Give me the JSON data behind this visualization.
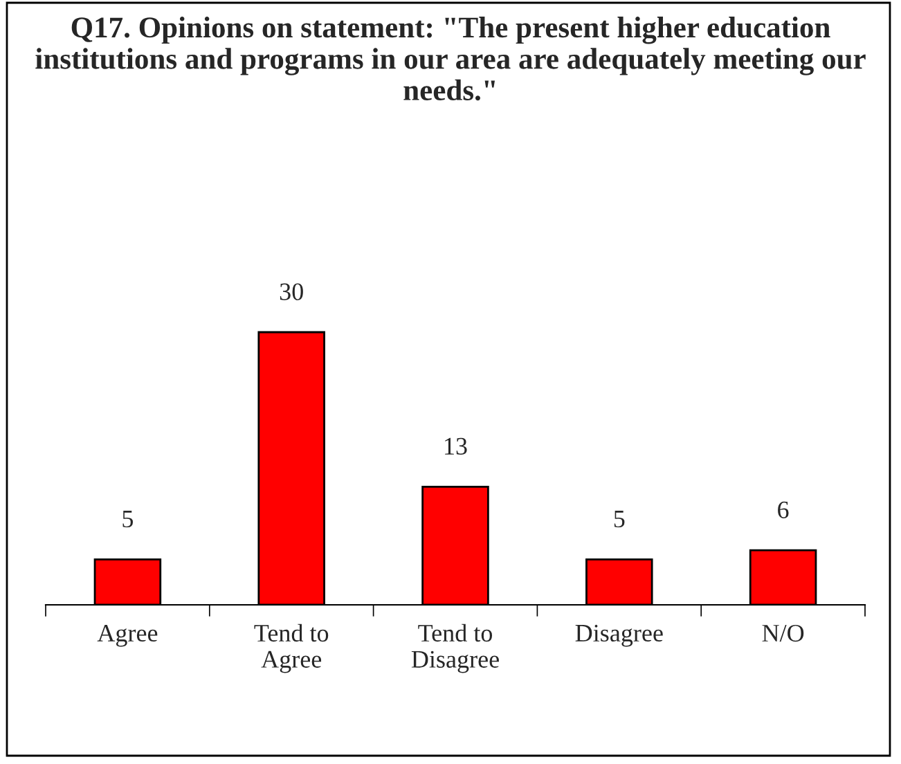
{
  "chart_data": {
    "type": "bar",
    "title": "Q17. Opinions on statement: \"The present higher education institutions and programs in our area are adequately meeting our needs.\"",
    "categories": [
      "Agree",
      "Tend to Agree",
      "Tend to Disagree",
      "Disagree",
      "N/O"
    ],
    "values": [
      5,
      30,
      13,
      5,
      6
    ],
    "color": "#ff0000",
    "data_labels": true,
    "grid": false,
    "legend": false
  }
}
